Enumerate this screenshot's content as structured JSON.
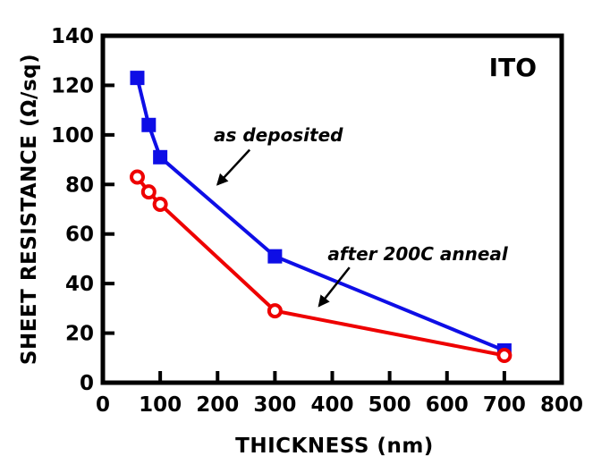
{
  "chart_data": {
    "type": "line",
    "title": "ITO",
    "xlabel": "THICKNESS (nm)",
    "ylabel": "SHEET RESISTANCE (Ω/sq)",
    "xlim": [
      0,
      800
    ],
    "ylim": [
      0,
      140
    ],
    "x_ticks": [
      0,
      100,
      200,
      300,
      400,
      500,
      600,
      700,
      800
    ],
    "y_ticks": [
      0,
      20,
      40,
      60,
      80,
      100,
      120,
      140
    ],
    "grid": false,
    "legend_position": "inline-annotations",
    "background": "#FFFFFF",
    "axis_color": "#000000",
    "series": [
      {
        "name": "as deposited",
        "color": "#0E0EE6",
        "marker": "filled-square",
        "points": [
          [
            60,
            123
          ],
          [
            80,
            104
          ],
          [
            100,
            91
          ],
          [
            300,
            51
          ],
          [
            700,
            13
          ]
        ]
      },
      {
        "name": "after 200C anneal",
        "color": "#EE0000",
        "marker": "open-circle",
        "points": [
          [
            60,
            83
          ],
          [
            80,
            77
          ],
          [
            100,
            72
          ],
          [
            300,
            29
          ],
          [
            700,
            11
          ]
        ]
      }
    ],
    "annotations": [
      {
        "text": "as deposited",
        "text_at": [
          306,
          100
        ],
        "arrow_from": [
          256,
          94
        ],
        "arrow_to": [
          200,
          80
        ]
      },
      {
        "text": "after 200C anneal",
        "text_at": [
          549,
          52
        ],
        "arrow_from": [
          430,
          46.5
        ],
        "arrow_to": [
          377,
          31
        ]
      }
    ]
  }
}
